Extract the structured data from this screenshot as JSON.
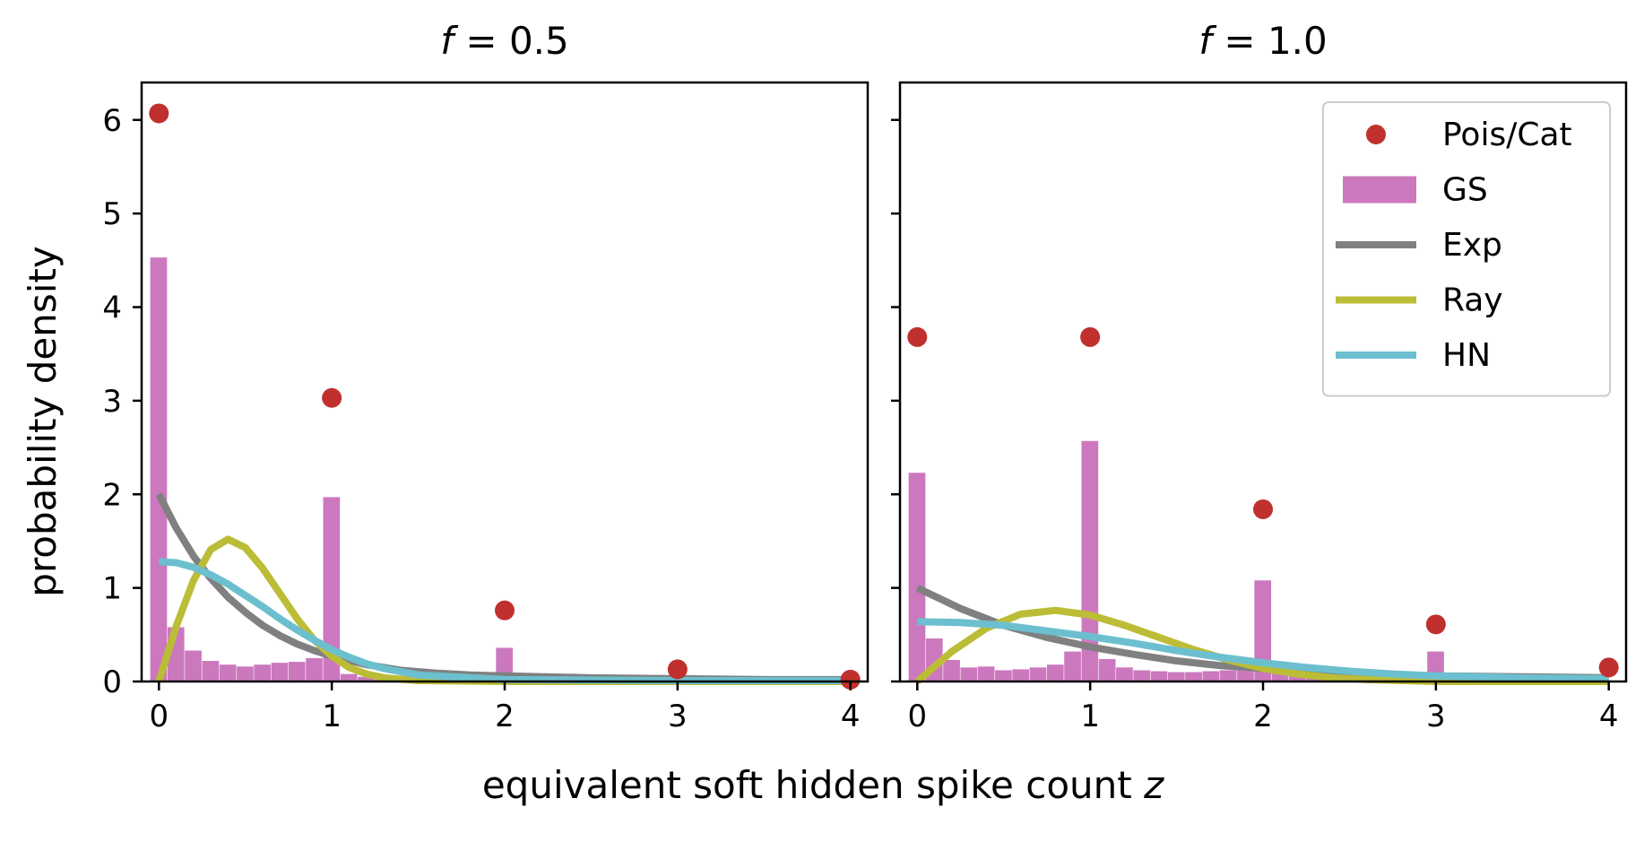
{
  "figure": {
    "xlabel": "equivalent soft hidden spike count",
    "xlabel_var": "z",
    "ylabel": "probability density",
    "background": "#ffffff"
  },
  "legend": {
    "placement": "top-right of right panel",
    "entries": [
      {
        "key": "pois",
        "label": "Pois/Cat",
        "kind": "marker",
        "color": "#c0302e"
      },
      {
        "key": "gs",
        "label": "GS",
        "kind": "patch",
        "color": "#cc78be"
      },
      {
        "key": "exp",
        "label": "Exp",
        "kind": "line",
        "color": "#808080"
      },
      {
        "key": "ray",
        "label": "Ray",
        "kind": "line",
        "color": "#bcbd36"
      },
      {
        "key": "hn",
        "label": "HN",
        "kind": "line",
        "color": "#6cbfce"
      }
    ]
  },
  "chart_data": [
    {
      "type": "bar",
      "panel": "left",
      "title_var": "f",
      "title_rest": " = 0.5",
      "xlim": [
        -0.1,
        4.1
      ],
      "ylim": [
        0,
        6.4
      ],
      "xticks": [
        0,
        1,
        2,
        3,
        4
      ],
      "yticks": [
        0,
        1,
        2,
        3,
        4,
        5,
        6
      ],
      "grid": false,
      "bin_width": 0.1,
      "pois_cat": {
        "x": [
          0,
          1,
          2,
          3,
          4
        ],
        "y": [
          6.07,
          3.03,
          0.76,
          0.13,
          0.02
        ]
      },
      "gs_hist": {
        "bin_starts": [
          -0.05,
          0.05,
          0.15,
          0.25,
          0.35,
          0.45,
          0.55,
          0.65,
          0.75,
          0.85,
          0.95,
          1.05,
          1.15,
          1.25,
          1.35,
          1.45,
          1.55,
          1.65,
          1.75,
          1.85,
          1.95,
          2.05,
          2.15
        ],
        "heights": [
          4.53,
          0.58,
          0.33,
          0.22,
          0.18,
          0.16,
          0.18,
          0.2,
          0.21,
          0.25,
          1.97,
          0.08,
          0.05,
          0.04,
          0.03,
          0.03,
          0.02,
          0.02,
          0.02,
          0.02,
          0.36,
          0.02,
          0.01
        ]
      },
      "exp": {
        "x": [
          0,
          0.1,
          0.2,
          0.3,
          0.4,
          0.5,
          0.6,
          0.7,
          0.8,
          0.9,
          1.0,
          1.2,
          1.4,
          1.6,
          1.8,
          2.0,
          2.5,
          3.0,
          3.5,
          4.0
        ],
        "y": [
          2.0,
          1.64,
          1.34,
          1.1,
          0.9,
          0.74,
          0.6,
          0.49,
          0.4,
          0.33,
          0.27,
          0.18,
          0.12,
          0.09,
          0.07,
          0.06,
          0.04,
          0.03,
          0.02,
          0.02
        ]
      },
      "ray": {
        "x": [
          0,
          0.1,
          0.2,
          0.3,
          0.4,
          0.5,
          0.6,
          0.7,
          0.8,
          0.9,
          1.0,
          1.1,
          1.2,
          1.3,
          1.5,
          2.0,
          3.0,
          4.0
        ],
        "y": [
          0,
          0.59,
          1.08,
          1.41,
          1.52,
          1.43,
          1.21,
          0.94,
          0.67,
          0.44,
          0.27,
          0.15,
          0.08,
          0.04,
          0.01,
          0.0,
          0.0,
          0.0
        ]
      },
      "hn": {
        "x": [
          0,
          0.1,
          0.2,
          0.3,
          0.4,
          0.5,
          0.6,
          0.7,
          0.8,
          0.9,
          1.0,
          1.1,
          1.2,
          1.3,
          1.5,
          2.0,
          3.0,
          4.0
        ],
        "y": [
          1.28,
          1.27,
          1.22,
          1.14,
          1.04,
          0.92,
          0.8,
          0.67,
          0.55,
          0.44,
          0.34,
          0.26,
          0.19,
          0.14,
          0.07,
          0.02,
          0.01,
          0.01
        ]
      }
    },
    {
      "type": "bar",
      "panel": "right",
      "title_var": "f",
      "title_rest": " = 1.0",
      "xlim": [
        -0.1,
        4.1
      ],
      "ylim": [
        0,
        6.4
      ],
      "xticks": [
        0,
        1,
        2,
        3,
        4
      ],
      "yticks": [
        0,
        1,
        2,
        3,
        4,
        5,
        6
      ],
      "grid": false,
      "bin_width": 0.1,
      "pois_cat": {
        "x": [
          0,
          1,
          2,
          3,
          4
        ],
        "y": [
          3.68,
          3.68,
          1.84,
          0.61,
          0.15
        ]
      },
      "gs_hist": {
        "bin_starts": [
          -0.05,
          0.05,
          0.15,
          0.25,
          0.35,
          0.45,
          0.55,
          0.65,
          0.75,
          0.85,
          0.95,
          1.05,
          1.15,
          1.25,
          1.35,
          1.45,
          1.55,
          1.65,
          1.75,
          1.85,
          1.95,
          2.05,
          2.15,
          2.25,
          2.35,
          2.45,
          2.55,
          2.65,
          2.75,
          2.85,
          2.95,
          3.05,
          3.15
        ],
        "heights": [
          2.23,
          0.46,
          0.23,
          0.15,
          0.16,
          0.12,
          0.13,
          0.15,
          0.18,
          0.32,
          2.57,
          0.24,
          0.15,
          0.12,
          0.11,
          0.1,
          0.1,
          0.11,
          0.12,
          0.14,
          1.08,
          0.12,
          0.08,
          0.06,
          0.05,
          0.05,
          0.04,
          0.04,
          0.04,
          0.05,
          0.32,
          0.04,
          0.02
        ]
      },
      "exp": {
        "x": [
          0,
          0.25,
          0.5,
          0.75,
          1.0,
          1.25,
          1.5,
          1.75,
          2.0,
          2.5,
          3.0,
          3.5,
          4.0
        ],
        "y": [
          1.0,
          0.78,
          0.6,
          0.47,
          0.37,
          0.29,
          0.22,
          0.17,
          0.14,
          0.09,
          0.06,
          0.05,
          0.04
        ]
      },
      "ray": {
        "x": [
          0,
          0.2,
          0.4,
          0.6,
          0.8,
          1.0,
          1.2,
          1.4,
          1.6,
          1.8,
          2.0,
          2.2,
          2.4,
          2.6,
          3.0,
          4.0
        ],
        "y": [
          0,
          0.32,
          0.57,
          0.72,
          0.76,
          0.71,
          0.6,
          0.47,
          0.34,
          0.23,
          0.14,
          0.08,
          0.04,
          0.02,
          0.0,
          0.0
        ]
      },
      "hn": {
        "x": [
          0,
          0.25,
          0.5,
          0.75,
          1.0,
          1.25,
          1.5,
          1.75,
          2.0,
          2.25,
          2.5,
          2.75,
          3.0,
          3.5,
          4.0
        ],
        "y": [
          0.64,
          0.63,
          0.6,
          0.54,
          0.48,
          0.41,
          0.33,
          0.26,
          0.2,
          0.15,
          0.11,
          0.08,
          0.06,
          0.04,
          0.03
        ]
      }
    }
  ]
}
